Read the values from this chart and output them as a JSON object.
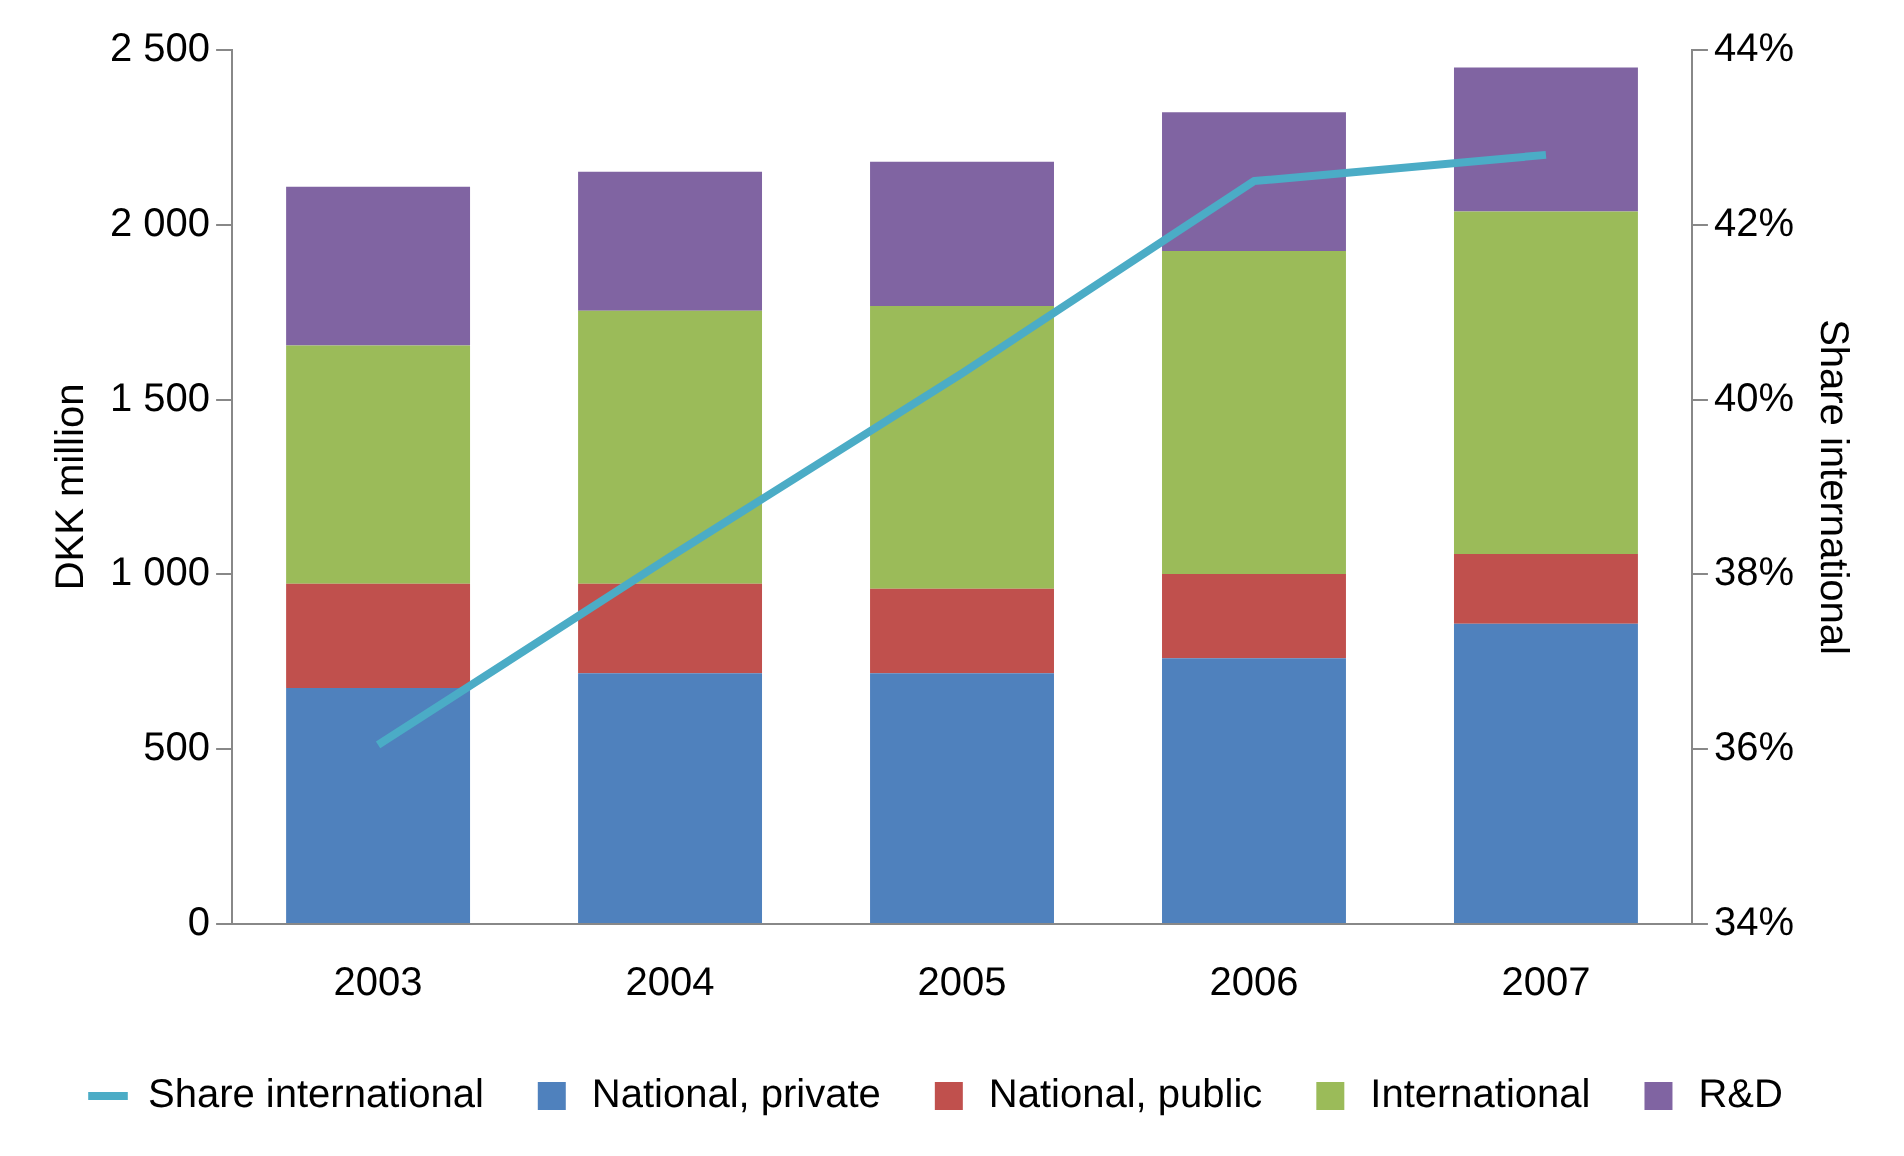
{
  "chart_data": {
    "type": "bar",
    "stacked": true,
    "ylabel": "DKK million",
    "y2label": "Share international",
    "categories": [
      "2003",
      "2004",
      "2005",
      "2006",
      "2007"
    ],
    "series": [
      {
        "name": "National, private",
        "color": "#4f81bd",
        "values": [
          675,
          717,
          717,
          760,
          859
        ]
      },
      {
        "name": "National, public",
        "color": "#c0504d",
        "values": [
          298,
          256,
          242,
          241,
          199
        ]
      },
      {
        "name": "International",
        "color": "#9bbb59",
        "values": [
          682,
          781,
          809,
          924,
          980
        ]
      },
      {
        "name": "R&D",
        "color": "#8064a2",
        "values": [
          454,
          398,
          412,
          397,
          412
        ]
      },
      {
        "name": "Share international",
        "type": "line",
        "axis": "y2",
        "color": "#4bacc6",
        "marker": "none",
        "values": [
          36.05,
          38.2,
          40.3,
          42.5,
          42.8
        ]
      }
    ],
    "ylim": [
      0,
      2500
    ],
    "yticks": [
      0,
      500,
      {
        "value": 1000,
        "label": "1 000"
      },
      {
        "value": 1500,
        "label": "1 500"
      },
      {
        "value": 2000,
        "label": "2 000"
      },
      {
        "value": 2500,
        "label": "2 500"
      }
    ],
    "y2lim": [
      34,
      44
    ],
    "y2ticks": [
      {
        "value": 34,
        "label": "34%"
      },
      {
        "value": 36,
        "label": "36%"
      },
      {
        "value": 38,
        "label": "38%"
      },
      {
        "value": 40,
        "label": "40%"
      },
      {
        "value": 42,
        "label": "42%"
      },
      {
        "value": 44,
        "label": "44%"
      }
    ],
    "grid": false,
    "legend": "bottom"
  }
}
